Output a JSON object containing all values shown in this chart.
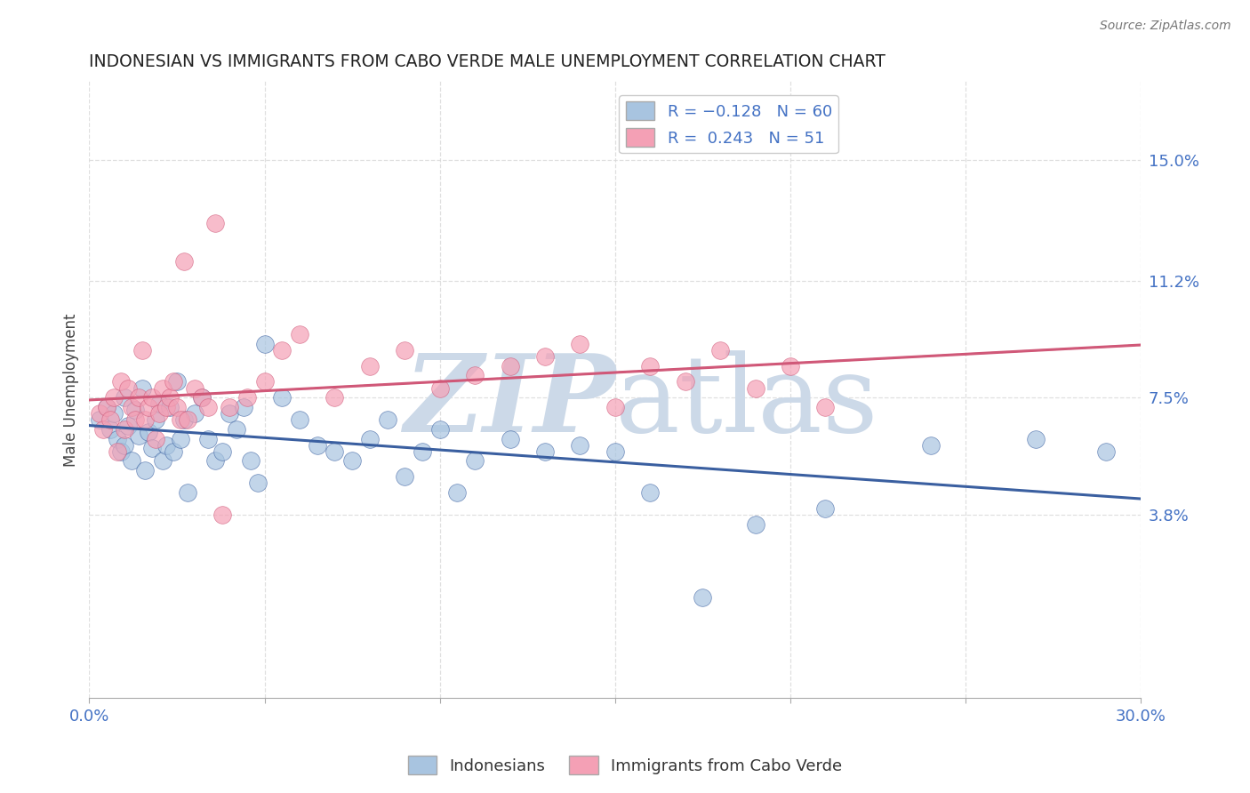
{
  "title": "INDONESIAN VS IMMIGRANTS FROM CABO VERDE MALE UNEMPLOYMENT CORRELATION CHART",
  "source": "Source: ZipAtlas.com",
  "ylabel": "Male Unemployment",
  "xlabel": "",
  "xlim": [
    0.0,
    0.3
  ],
  "ylim": [
    -0.02,
    0.175
  ],
  "yticks": [
    0.038,
    0.075,
    0.112,
    0.15
  ],
  "ytick_labels": [
    "3.8%",
    "7.5%",
    "11.2%",
    "15.0%"
  ],
  "xticks": [
    0.0,
    0.05,
    0.1,
    0.15,
    0.2,
    0.25,
    0.3
  ],
  "xtick_labels": [
    "0.0%",
    "",
    "",
    "",
    "",
    "",
    "30.0%"
  ],
  "legend_r1": "R = -0.128",
  "legend_n1": "N = 60",
  "legend_r2": "R =  0.243",
  "legend_n2": "N = 51",
  "color_blue": "#a8c4e0",
  "color_pink": "#f4a0b5",
  "line_color_blue": "#3a5fa0",
  "line_color_pink": "#d05878",
  "watermark_color": "#ccd9e8",
  "indonesian_x": [
    0.003,
    0.005,
    0.006,
    0.007,
    0.008,
    0.009,
    0.01,
    0.01,
    0.011,
    0.012,
    0.013,
    0.014,
    0.015,
    0.016,
    0.017,
    0.018,
    0.019,
    0.02,
    0.021,
    0.022,
    0.023,
    0.024,
    0.025,
    0.026,
    0.027,
    0.028,
    0.03,
    0.032,
    0.034,
    0.036,
    0.038,
    0.04,
    0.042,
    0.044,
    0.046,
    0.048,
    0.05,
    0.055,
    0.06,
    0.065,
    0.07,
    0.075,
    0.08,
    0.085,
    0.09,
    0.095,
    0.1,
    0.105,
    0.11,
    0.12,
    0.13,
    0.14,
    0.15,
    0.16,
    0.175,
    0.19,
    0.21,
    0.24,
    0.27,
    0.29
  ],
  "indonesian_y": [
    0.068,
    0.072,
    0.065,
    0.07,
    0.062,
    0.058,
    0.075,
    0.06,
    0.066,
    0.055,
    0.071,
    0.063,
    0.078,
    0.052,
    0.064,
    0.059,
    0.068,
    0.073,
    0.055,
    0.06,
    0.072,
    0.058,
    0.08,
    0.062,
    0.068,
    0.045,
    0.07,
    0.075,
    0.062,
    0.055,
    0.058,
    0.07,
    0.065,
    0.072,
    0.055,
    0.048,
    0.092,
    0.075,
    0.068,
    0.06,
    0.058,
    0.055,
    0.062,
    0.068,
    0.05,
    0.058,
    0.065,
    0.045,
    0.055,
    0.062,
    0.058,
    0.06,
    0.058,
    0.045,
    0.012,
    0.035,
    0.04,
    0.06,
    0.062,
    0.058
  ],
  "caboverde_x": [
    0.003,
    0.004,
    0.005,
    0.006,
    0.007,
    0.008,
    0.009,
    0.01,
    0.011,
    0.012,
    0.013,
    0.014,
    0.015,
    0.016,
    0.017,
    0.018,
    0.019,
    0.02,
    0.021,
    0.022,
    0.023,
    0.024,
    0.025,
    0.026,
    0.027,
    0.028,
    0.03,
    0.032,
    0.034,
    0.036,
    0.038,
    0.04,
    0.045,
    0.05,
    0.055,
    0.06,
    0.07,
    0.08,
    0.09,
    0.1,
    0.11,
    0.12,
    0.13,
    0.14,
    0.15,
    0.16,
    0.17,
    0.18,
    0.19,
    0.2,
    0.21
  ],
  "caboverde_y": [
    0.07,
    0.065,
    0.072,
    0.068,
    0.075,
    0.058,
    0.08,
    0.065,
    0.078,
    0.072,
    0.068,
    0.075,
    0.09,
    0.068,
    0.072,
    0.075,
    0.062,
    0.07,
    0.078,
    0.072,
    0.075,
    0.08,
    0.072,
    0.068,
    0.118,
    0.068,
    0.078,
    0.075,
    0.072,
    0.13,
    0.038,
    0.072,
    0.075,
    0.08,
    0.09,
    0.095,
    0.075,
    0.085,
    0.09,
    0.078,
    0.082,
    0.085,
    0.088,
    0.092,
    0.072,
    0.085,
    0.08,
    0.09,
    0.078,
    0.085,
    0.072
  ],
  "bg_color": "#ffffff",
  "grid_color": "#d8d8d8",
  "axis_color": "#4472c4",
  "title_color": "#222222"
}
